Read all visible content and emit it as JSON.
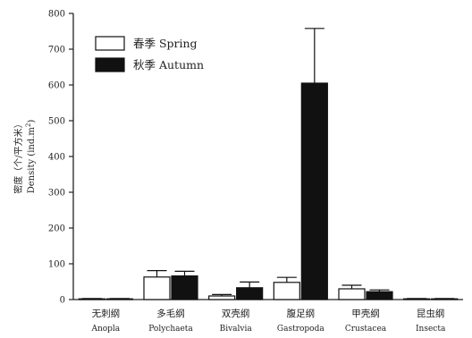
{
  "chart_data": {
    "type": "bar",
    "ylim": [
      0,
      800
    ],
    "yticks": [
      0,
      100,
      200,
      300,
      400,
      500,
      600,
      700,
      800
    ],
    "ylabel_cn": "密度（个/平方米）",
    "ylabel_en": "Density (ind.m",
    "ylabel_en_sup": "2",
    "ylabel_en_end": ")",
    "categories": [
      {
        "cn": "无刺纲",
        "en": "Anopla"
      },
      {
        "cn": "多毛纲",
        "en": "Polychaeta"
      },
      {
        "cn": "双壳纲",
        "en": "Bivalvia"
      },
      {
        "cn": "腹足纲",
        "en": "Gastropoda"
      },
      {
        "cn": "甲壳纲",
        "en": "Crustacea"
      },
      {
        "cn": "昆虫纲",
        "en": "Insecta"
      }
    ],
    "series": [
      {
        "name": "春季 Spring",
        "fill": "#ffffff",
        "values": [
          2,
          63,
          10,
          48,
          30,
          2
        ],
        "errors": [
          1,
          18,
          4,
          14,
          10,
          1
        ]
      },
      {
        "name": "秋季 Autumn",
        "fill": "#111111",
        "values": [
          2,
          66,
          33,
          605,
          22,
          2
        ],
        "errors": [
          1,
          13,
          16,
          153,
          5,
          1
        ]
      }
    ],
    "legend_position": "top-left",
    "grid": false
  }
}
